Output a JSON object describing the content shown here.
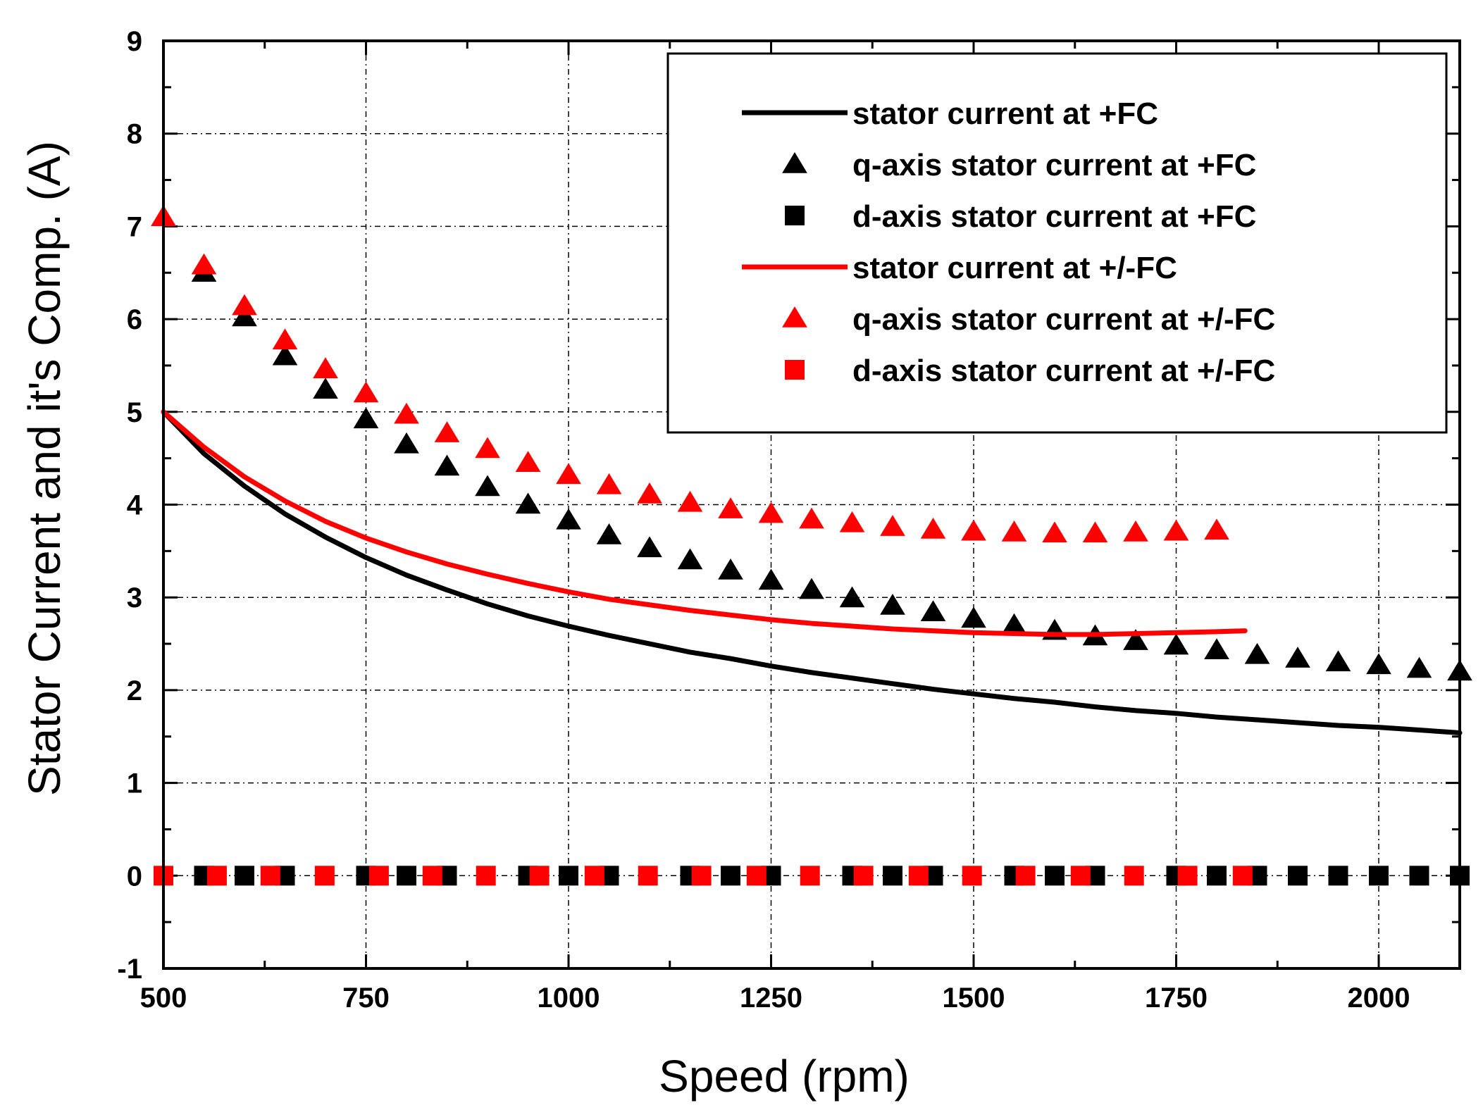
{
  "chart_data": {
    "type": "scatter",
    "xlabel": "Speed (rpm)",
    "ylabel": "Stator Current and it's Comp. (A)",
    "xlim": [
      500,
      2100
    ],
    "ylim": [
      -1,
      9
    ],
    "xticks": [
      500,
      750,
      1000,
      1250,
      1500,
      1750,
      2000
    ],
    "yticks": [
      -1,
      0,
      1,
      2,
      3,
      4,
      5,
      6,
      7,
      8,
      9
    ],
    "grid": true,
    "legend_position": "top-right",
    "series": [
      {
        "name": "stator current at +FC",
        "kind": "line",
        "color": "#000000",
        "x": [
          500,
          550,
          600,
          650,
          700,
          750,
          800,
          850,
          900,
          950,
          1000,
          1050,
          1100,
          1150,
          1200,
          1250,
          1300,
          1350,
          1400,
          1450,
          1500,
          1550,
          1600,
          1650,
          1700,
          1750,
          1800,
          1850,
          1900,
          1950,
          2000,
          2050,
          2100
        ],
        "y": [
          5.0,
          4.55,
          4.2,
          3.9,
          3.65,
          3.43,
          3.24,
          3.08,
          2.93,
          2.8,
          2.69,
          2.59,
          2.5,
          2.41,
          2.34,
          2.26,
          2.19,
          2.13,
          2.07,
          2.01,
          1.96,
          1.91,
          1.87,
          1.82,
          1.78,
          1.75,
          1.71,
          1.68,
          1.65,
          1.62,
          1.6,
          1.57,
          1.54
        ]
      },
      {
        "name": "q-axis stator current at +FC",
        "kind": "triangle",
        "color": "#000000",
        "x": [
          550,
          600,
          650,
          700,
          750,
          800,
          850,
          900,
          950,
          1000,
          1050,
          1100,
          1150,
          1200,
          1250,
          1300,
          1350,
          1400,
          1450,
          1500,
          1550,
          1600,
          1650,
          1700,
          1750,
          1800,
          1850,
          1900,
          1950,
          2000,
          2050,
          2100
        ],
        "y": [
          6.5,
          6.02,
          5.6,
          5.24,
          4.92,
          4.65,
          4.41,
          4.19,
          4.0,
          3.83,
          3.67,
          3.53,
          3.4,
          3.29,
          3.18,
          3.08,
          2.99,
          2.91,
          2.84,
          2.77,
          2.7,
          2.64,
          2.58,
          2.53,
          2.48,
          2.43,
          2.38,
          2.34,
          2.3,
          2.27,
          2.23,
          2.2
        ]
      },
      {
        "name": "d-axis stator current at +FC",
        "kind": "square",
        "color": "#000000",
        "x": [
          550,
          600,
          650,
          750,
          800,
          850,
          950,
          1000,
          1050,
          1150,
          1200,
          1250,
          1350,
          1400,
          1450,
          1550,
          1600,
          1650,
          1750,
          1800,
          1850,
          1900,
          1950,
          2000,
          2050,
          2100
        ],
        "y": [
          0,
          0,
          0,
          0,
          0,
          0,
          0,
          0,
          0,
          0,
          0,
          0,
          0,
          0,
          0,
          0,
          0,
          0,
          0,
          0,
          0,
          0,
          0,
          0,
          0,
          0
        ]
      },
      {
        "name": "stator current at +/-FC",
        "kind": "line",
        "color": "#ff0000",
        "x": [
          500,
          550,
          600,
          650,
          700,
          750,
          800,
          850,
          900,
          950,
          1000,
          1050,
          1100,
          1150,
          1200,
          1250,
          1300,
          1350,
          1400,
          1450,
          1500,
          1550,
          1600,
          1650,
          1700,
          1750,
          1800,
          1835
        ],
        "y": [
          5.0,
          4.62,
          4.3,
          4.04,
          3.82,
          3.64,
          3.49,
          3.36,
          3.25,
          3.15,
          3.06,
          2.98,
          2.92,
          2.86,
          2.81,
          2.76,
          2.72,
          2.69,
          2.66,
          2.64,
          2.62,
          2.61,
          2.6,
          2.6,
          2.61,
          2.62,
          2.63,
          2.64
        ]
      },
      {
        "name": "q-axis stator current at +/-FC",
        "kind": "triangle",
        "color": "#ff0000",
        "x": [
          500,
          550,
          600,
          650,
          700,
          750,
          800,
          850,
          900,
          950,
          1000,
          1050,
          1100,
          1150,
          1200,
          1250,
          1300,
          1350,
          1400,
          1450,
          1500,
          1550,
          1600,
          1650,
          1700,
          1750,
          1800
        ],
        "y": [
          7.1,
          6.58,
          6.14,
          5.77,
          5.46,
          5.2,
          4.97,
          4.77,
          4.6,
          4.45,
          4.32,
          4.21,
          4.11,
          4.02,
          3.95,
          3.9,
          3.84,
          3.8,
          3.76,
          3.73,
          3.71,
          3.7,
          3.69,
          3.69,
          3.7,
          3.71,
          3.72
        ]
      },
      {
        "name": "d-axis stator current at +/-FC",
        "kind": "square",
        "color": "#ff0000",
        "x": [
          500,
          566,
          632,
          699,
          766,
          832,
          898,
          964,
          1032,
          1098,
          1164,
          1232,
          1298,
          1364,
          1432,
          1498,
          1564,
          1632,
          1698,
          1764,
          1832
        ],
        "y": [
          0,
          0,
          0,
          0,
          0,
          0,
          0,
          0,
          0,
          0,
          0,
          0,
          0,
          0,
          0,
          0,
          0,
          0,
          0,
          0,
          0
        ]
      }
    ]
  }
}
